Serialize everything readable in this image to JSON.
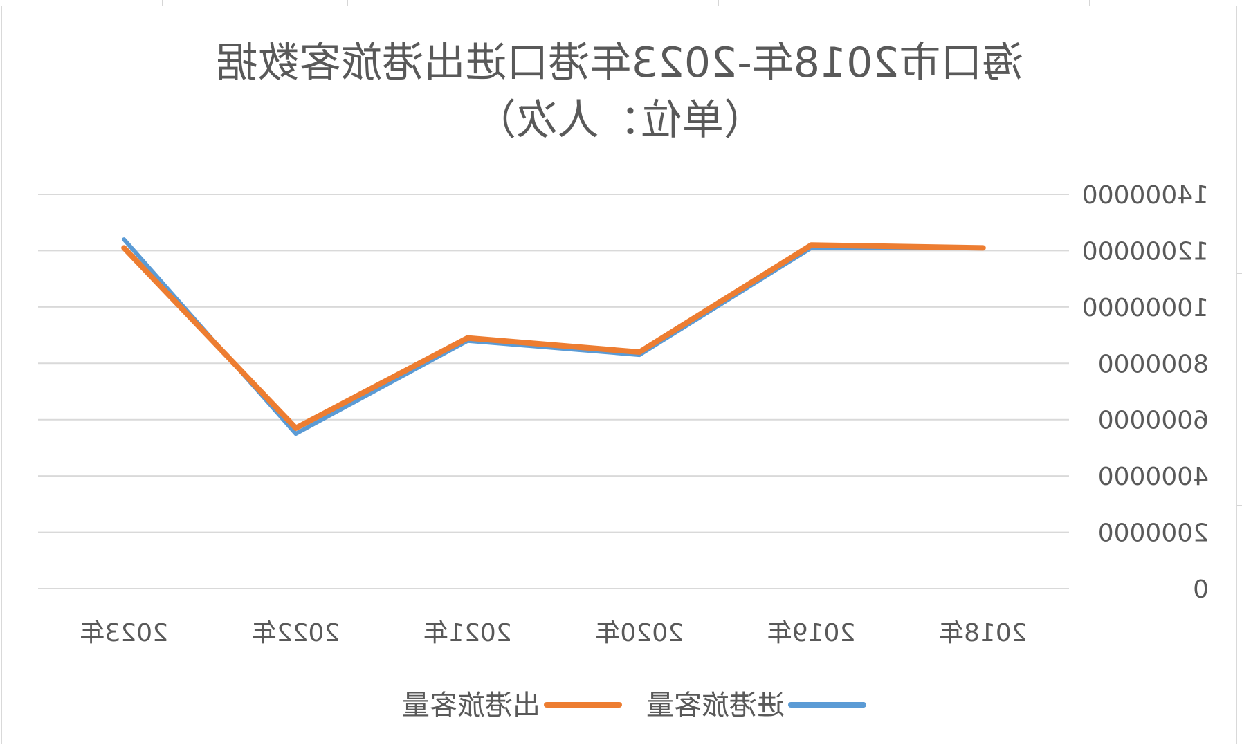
{
  "chart_data": {
    "type": "line",
    "title": "海口市2018年-2023年港口进出港旅客数据",
    "subtitle": "（单位：人次）",
    "categories": [
      "2018年",
      "2019年",
      "2020年",
      "2021年",
      "2022年",
      "2023年"
    ],
    "series": [
      {
        "name": "进港旅客量",
        "color": "#5b9bd5",
        "values": [
          12100000,
          12100000,
          8300000,
          8800000,
          5500000,
          12400000
        ]
      },
      {
        "name": "出港旅客量",
        "color": "#ed7d31",
        "values": [
          12100000,
          12200000,
          8400000,
          8900000,
          5700000,
          12100000
        ]
      }
    ],
    "yticks": [
      "0",
      "2000000",
      "4000000",
      "6000000",
      "8000000",
      "10000000",
      "12000000",
      "14000000"
    ],
    "ylim": [
      0,
      14000000
    ],
    "grid": true,
    "legend_position": "bottom",
    "xlabel": "",
    "ylabel": ""
  }
}
